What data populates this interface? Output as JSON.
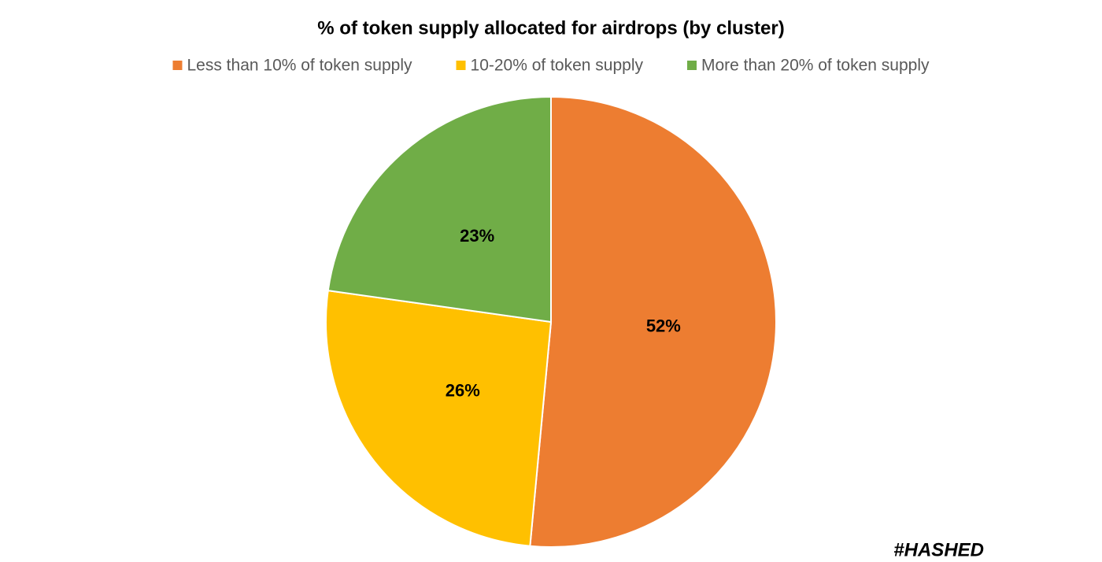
{
  "chart_data": {
    "type": "pie",
    "title": "% of token supply allocated for airdrops (by cluster)",
    "categories": [
      "Less than 10% of token supply",
      "10-20% of token supply",
      "More than 20% of token supply"
    ],
    "values": [
      52,
      26,
      23
    ],
    "value_labels": [
      "52%",
      "26%",
      "23%"
    ],
    "colors": [
      "#ed7d31",
      "#ffc000",
      "#70ad47"
    ],
    "legend": "top",
    "watermark": "#HASHED"
  }
}
